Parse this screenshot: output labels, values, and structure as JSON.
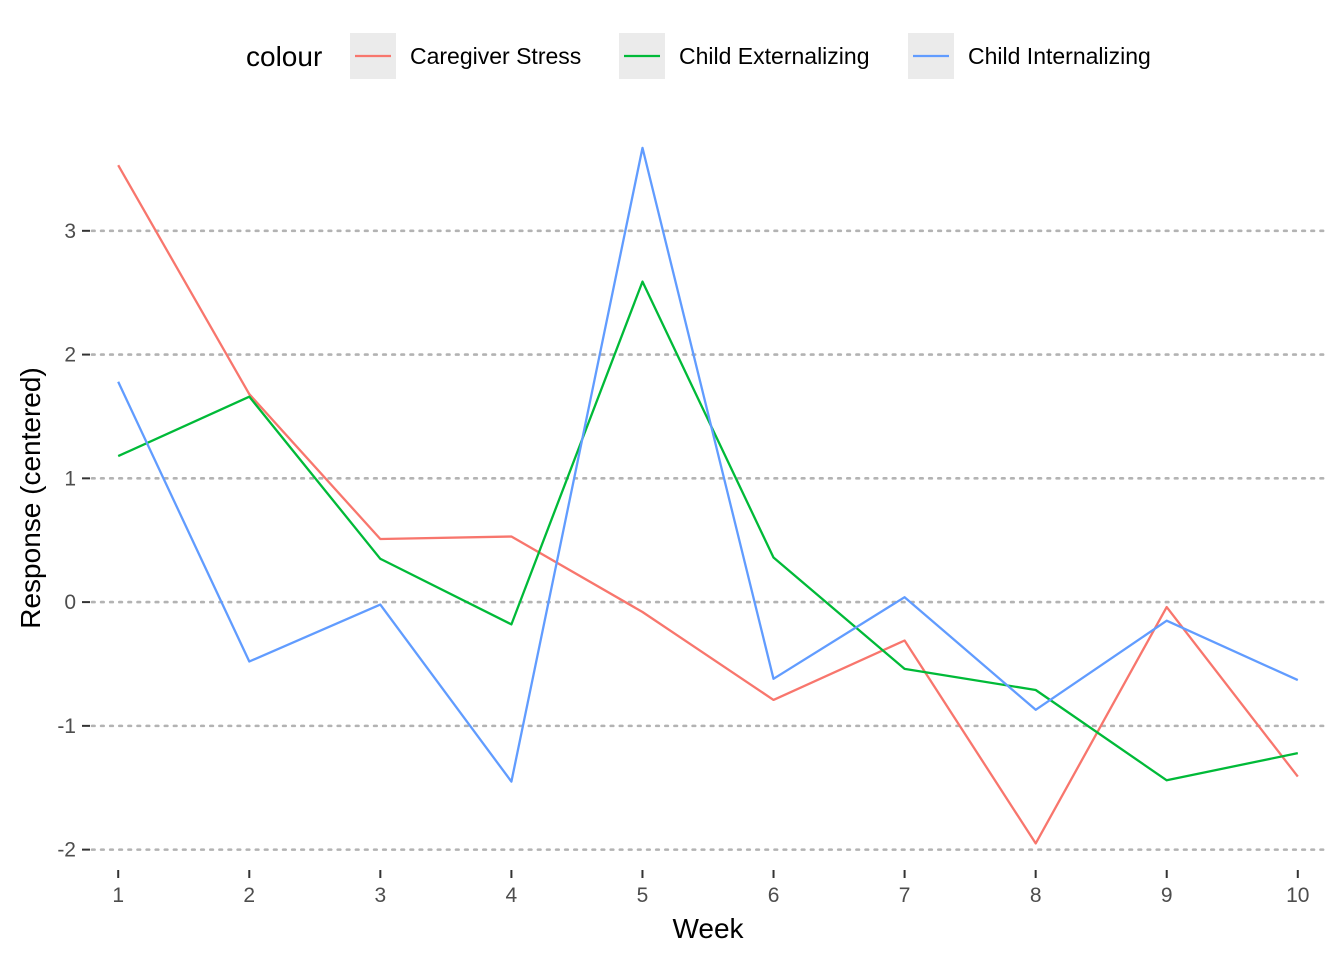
{
  "chart_data": {
    "type": "line",
    "title": "",
    "xlabel": "Week",
    "ylabel": "Response (centered)",
    "x": [
      1,
      2,
      3,
      4,
      5,
      6,
      7,
      8,
      9,
      10
    ],
    "xlim": [
      0.8,
      10.2
    ],
    "ylim": [
      -2.1,
      3.75
    ],
    "y_ticks": [
      -2,
      -1,
      0,
      1,
      2,
      3
    ],
    "x_ticks": [
      1,
      2,
      3,
      4,
      5,
      6,
      7,
      8,
      9,
      10
    ],
    "grid": "horizontal dotted major lines",
    "legend": {
      "title": "colour",
      "position": "top"
    },
    "series": [
      {
        "name": "Caregiver Stress",
        "color": "#F8766D",
        "values": [
          3.53,
          1.68,
          0.51,
          0.53,
          -0.08,
          -0.79,
          -0.31,
          -1.95,
          -0.04,
          -1.41
        ]
      },
      {
        "name": "Child Externalizing",
        "color": "#00BA38",
        "values": [
          1.18,
          1.66,
          0.35,
          -0.18,
          2.59,
          0.36,
          -0.54,
          -0.71,
          -1.44,
          -1.22
        ]
      },
      {
        "name": "Child Internalizing",
        "color": "#619CFF",
        "values": [
          1.78,
          -0.48,
          -0.02,
          -1.45,
          3.67,
          -0.62,
          0.04,
          -0.87,
          -0.15,
          -0.63
        ]
      }
    ]
  }
}
